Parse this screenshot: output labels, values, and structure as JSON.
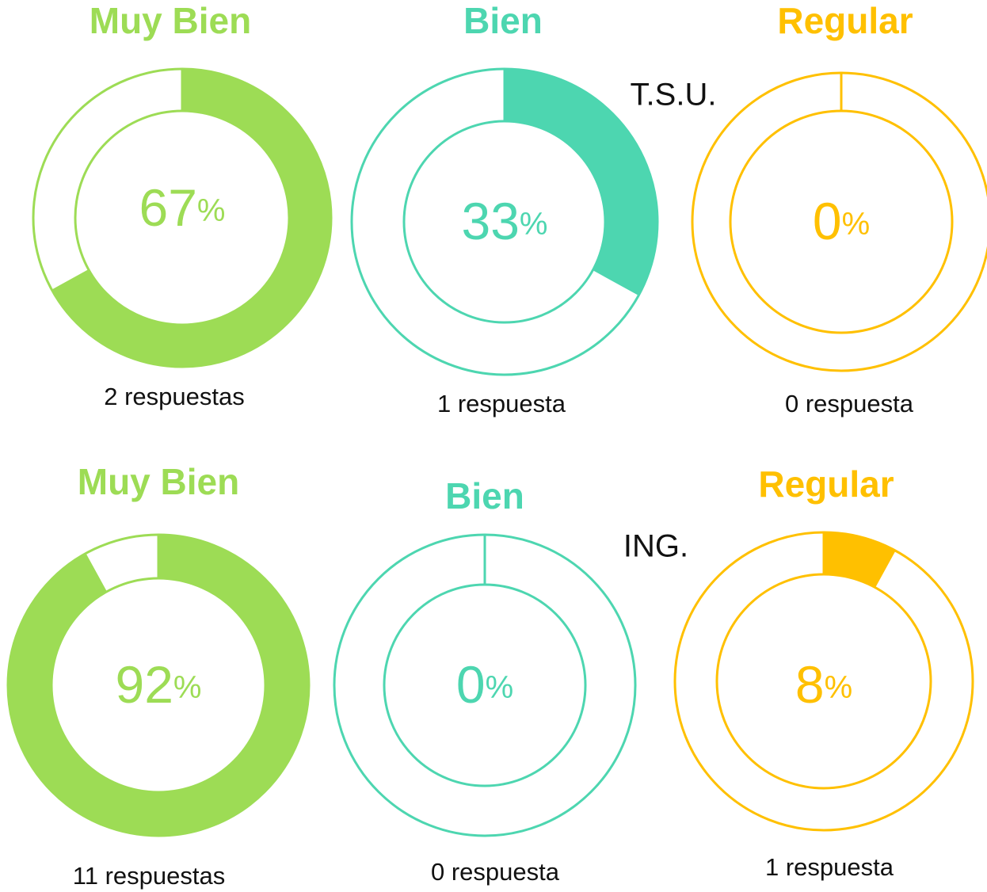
{
  "row_labels": [
    "T.S.U.",
    "ING."
  ],
  "chart_data": [
    {
      "type": "donut",
      "title": "Muy Bien",
      "value": 67,
      "unit": "%",
      "range": [
        0,
        100
      ],
      "caption": "2 respuestas",
      "color": "#9ddc55"
    },
    {
      "type": "donut",
      "title": "Bien",
      "value": 33,
      "unit": "%",
      "range": [
        0,
        100
      ],
      "caption": "1 respuesta",
      "color": "#4dd6b0"
    },
    {
      "type": "donut",
      "title": "Regular",
      "value": 0,
      "unit": "%",
      "range": [
        0,
        100
      ],
      "caption": "0 respuesta",
      "color": "#ffc000"
    },
    {
      "type": "donut",
      "title": "Muy Bien",
      "value": 92,
      "unit": "%",
      "range": [
        0,
        100
      ],
      "caption": "11 respuestas",
      "color": "#9ddc55"
    },
    {
      "type": "donut",
      "title": "Bien",
      "value": 0,
      "unit": "%",
      "range": [
        0,
        100
      ],
      "caption": "0 respuesta",
      "color": "#4dd6b0"
    },
    {
      "type": "donut",
      "title": "Regular",
      "value": 8,
      "unit": "%",
      "range": [
        0,
        100
      ],
      "caption": "1 respuesta",
      "color": "#ffc000"
    }
  ]
}
